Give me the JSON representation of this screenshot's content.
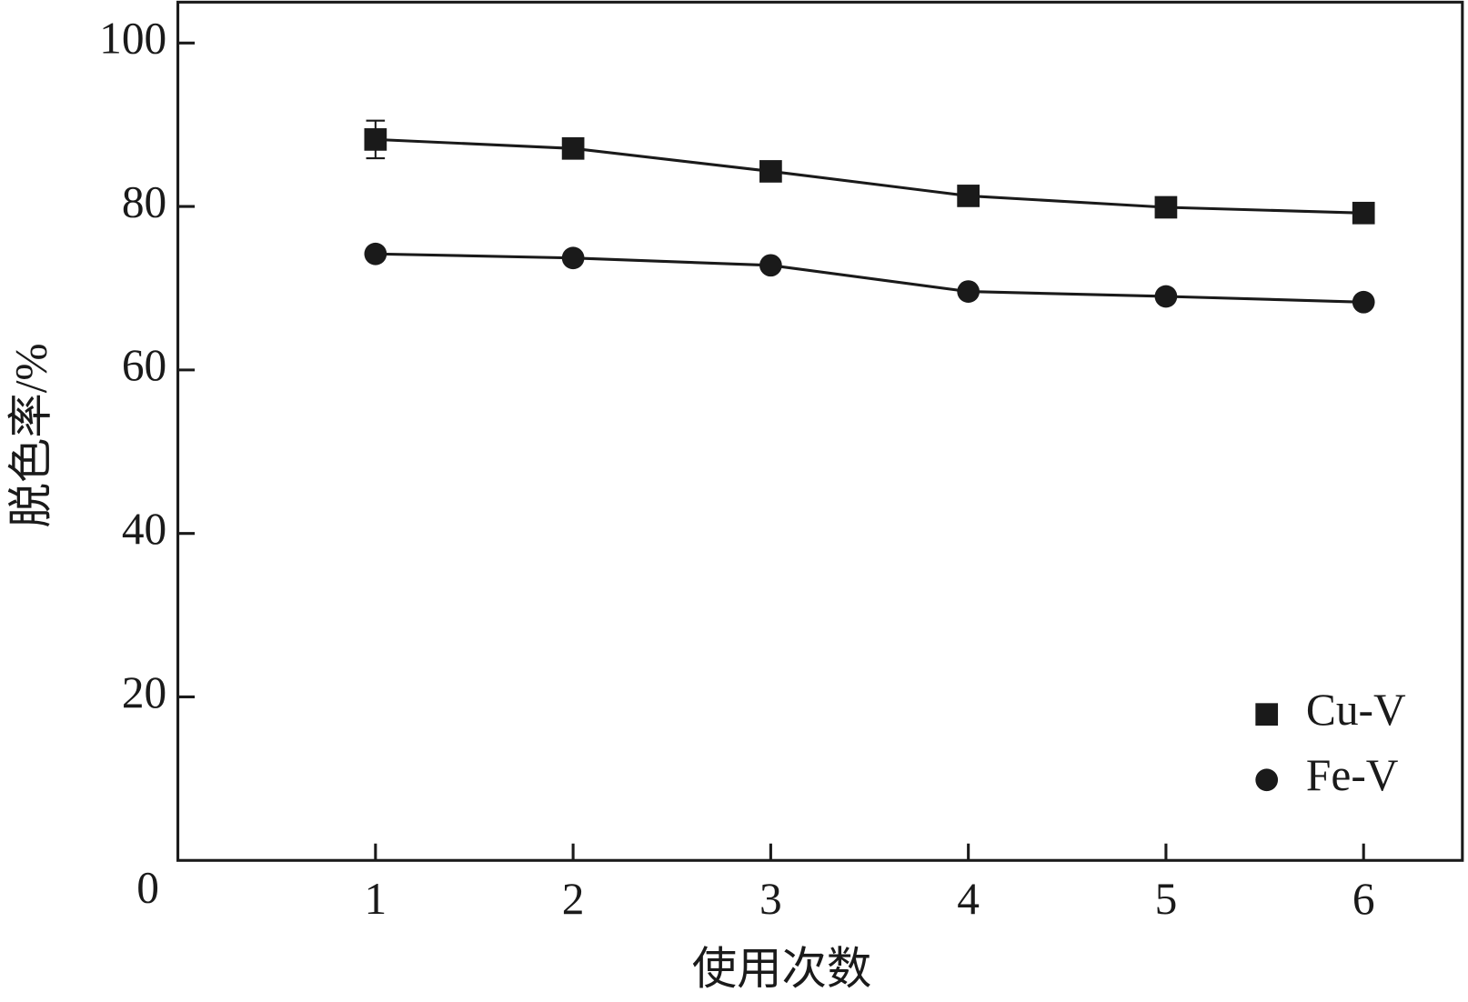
{
  "chart_data": {
    "type": "line",
    "x_label": "使用次数",
    "y_label": "脱色率/%",
    "x": [
      1,
      2,
      3,
      4,
      5,
      6
    ],
    "series": [
      {
        "name": "Cu-V",
        "color": "#1a1a1a",
        "marker": "square",
        "values": [
          88.2,
          87.1,
          84.3,
          81.3,
          79.9,
          79.2
        ],
        "errors": [
          2.3,
          null,
          null,
          null,
          null,
          null
        ]
      },
      {
        "name": "Fe-V",
        "color": "#1a1a1a",
        "marker": "circle",
        "values": [
          74.2,
          73.7,
          72.8,
          69.6,
          69.0,
          68.3
        ]
      }
    ],
    "xlim": [
      0,
      6.5
    ],
    "ylim": [
      0,
      105
    ],
    "xticks": [
      1,
      2,
      3,
      4,
      5,
      6
    ],
    "yticks": [
      0,
      20,
      40,
      60,
      80,
      100
    ],
    "legend": "lower right"
  }
}
